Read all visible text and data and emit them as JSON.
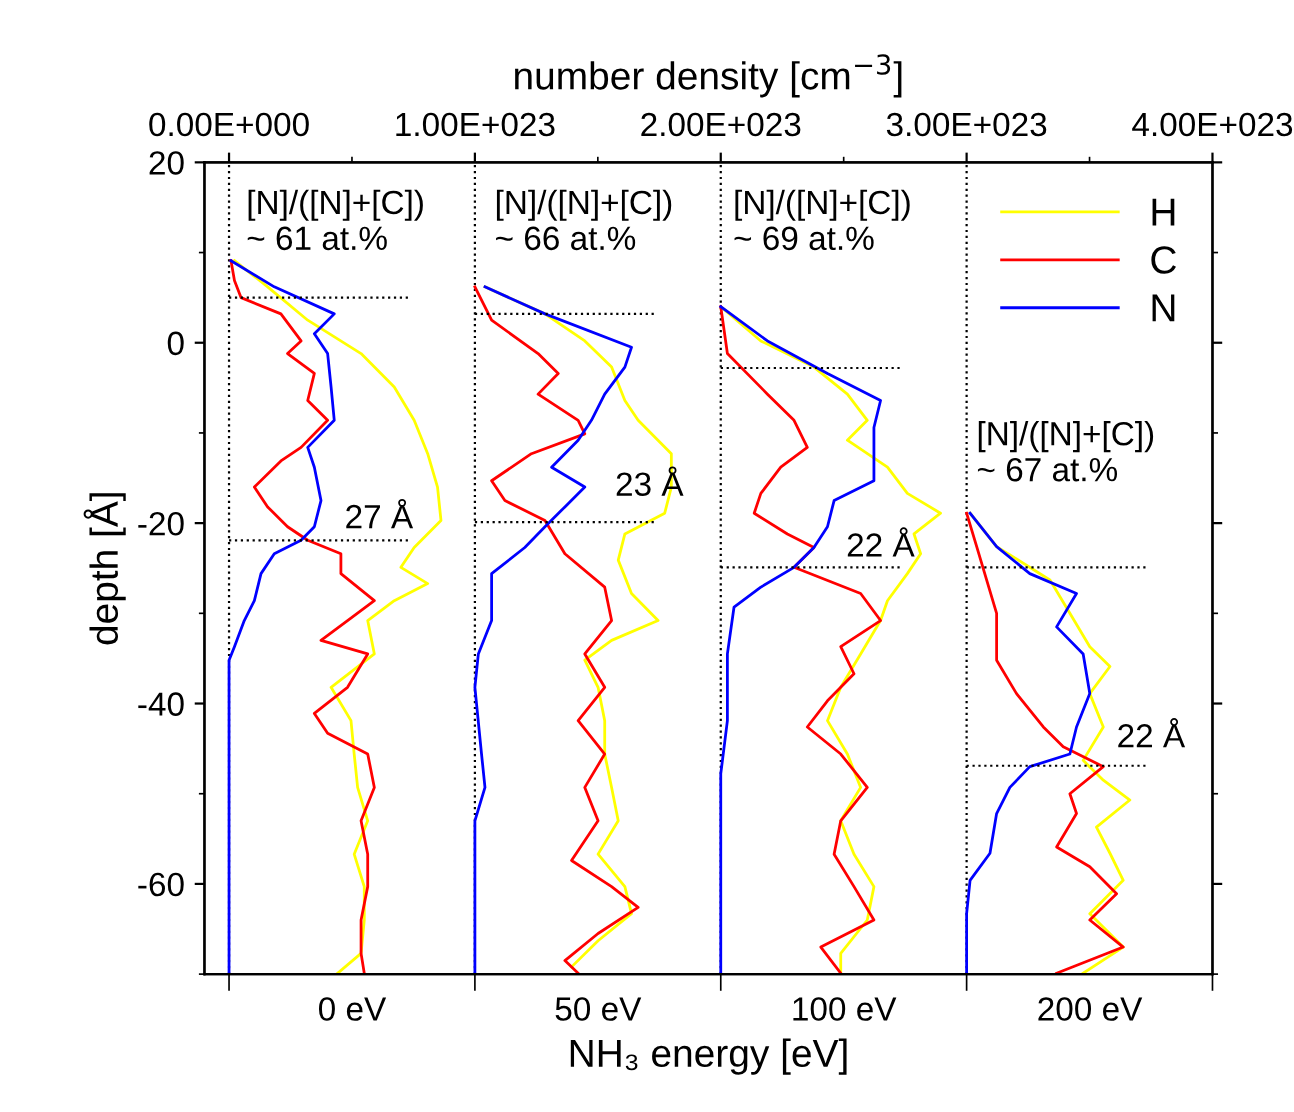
{
  "chart_data": {
    "type": "line",
    "xlabel": "NH₃ energy [eV]",
    "x2label": "number density [cm$^{−3}$]",
    "ylabel": "depth [Å]",
    "categories": [
      "0 eV",
      "50 eV",
      "100 eV",
      "200 eV"
    ],
    "x2lim": [
      -1e+22,
      4e+23
    ],
    "x2ticks": [
      {
        "value": 0,
        "label": "0.00E+000"
      },
      {
        "value": 1e+23,
        "label": "1.00E+023"
      },
      {
        "value": 2e+23,
        "label": "2.00E+023"
      },
      {
        "value": 3e+23,
        "label": "3.00E+023"
      },
      {
        "value": 4e+23,
        "label": "4.00E+023"
      }
    ],
    "ylim": [
      -70,
      20
    ],
    "yticks": [
      -60,
      -40,
      -20,
      0,
      20
    ],
    "legend": "top right",
    "series": [
      {
        "name": "H",
        "color": "#ffff00",
        "axis": "x2",
        "x": [
          2.2e+21,
          1.57e+22,
          3.2e+22,
          5.37e+22,
          6.72e+22,
          7.53e+22,
          8.08e+22,
          8.48e+22,
          8.62e+22,
          7.53e+22,
          6.99e+22,
          8.08e+22,
          6.72e+22,
          5.64e+22,
          5.91e+22,
          4.15e+22,
          4.96e+22,
          5.09e+22,
          5.23e+22,
          5.64e+22,
          5.09e+22,
          5.5e+22,
          5.5e+22,
          5.37e+22,
          4.42e+22
        ],
        "values": [
          9.1,
          6.2,
          2.5,
          -1.2,
          -4.9,
          -8.6,
          -12.3,
          -16.0,
          -19.7,
          -22.7,
          -24.9,
          -26.7,
          -28.6,
          -30.8,
          -34.5,
          -38.2,
          -41.9,
          -45.6,
          -49.3,
          -53.0,
          -56.7,
          -60.3,
          -64.0,
          -67.7,
          -69.9
        ]
      },
      {
        "name": "C",
        "color": "#ff0000",
        "axis": "x2",
        "x": [
          8e+20,
          2.2e+21,
          4.9e+21,
          2.11e+22,
          2.93e+22,
          2.38e+22,
          3.47e+22,
          3.2e+22,
          4.01e+22,
          2.93e+22,
          2.11e+22,
          1.03e+22,
          1.57e+22,
          2.38e+22,
          3.2e+22,
          4.55e+22,
          4.55e+22,
          5.91e+22,
          4.82e+22,
          3.74e+22,
          5.64e+22,
          4.82e+22,
          3.47e+22,
          4.01e+22,
          5.64e+22,
          5.91e+22,
          5.37e+22,
          5.64e+22,
          5.64e+22,
          5.37e+22,
          5.37e+22,
          5.5e+22
        ],
        "values": [
          9.1,
          6.9,
          5.0,
          3.2,
          0.2,
          -1.2,
          -3.4,
          -6.4,
          -8.6,
          -11.6,
          -13.1,
          -16.0,
          -18.2,
          -20.4,
          -21.9,
          -23.4,
          -25.6,
          -28.6,
          -30.8,
          -33.0,
          -34.5,
          -38.2,
          -41.1,
          -43.3,
          -45.6,
          -49.3,
          -53.0,
          -56.7,
          -60.3,
          -64.0,
          -67.7,
          -69.9
        ]
      },
      {
        "name": "N",
        "color": "#0000ff",
        "axis": "x2",
        "x": [
          8e+20,
          1.84e+22,
          4.28e+22,
          3.47e+22,
          4.01e+22,
          4.15e+22,
          4.28e+22,
          3.2e+22,
          3.47e+22,
          3.74e+22,
          3.47e+22,
          2.93e+22,
          1.84e+22,
          1.3e+22,
          1.03e+22,
          6.2e+21,
          2.2e+21,
          0,
          0
        ],
        "values": [
          9.1,
          6.2,
          3.2,
          1.0,
          -1.2,
          -4.9,
          -8.6,
          -11.6,
          -13.8,
          -17.5,
          -20.4,
          -21.9,
          -23.4,
          -25.6,
          -28.6,
          -30.8,
          -33.7,
          -35.2,
          -69.9
        ]
      },
      {
        "color": "#ffff00",
        "axis": "x2",
        "x": [
          1.041e+23,
          1.285e+23,
          1.447e+23,
          1.556e+23,
          1.61e+23,
          1.664e+23,
          1.799e+23,
          1.799e+23,
          1.772e+23,
          1.61e+23,
          1.583e+23,
          1.637e+23,
          1.745e+23,
          1.556e+23,
          1.447e+23,
          1.501e+23,
          1.528e+23,
          1.528e+23,
          1.556e+23,
          1.583e+23,
          1.501e+23,
          1.61e+23,
          1.637e+23,
          1.501e+23,
          1.393e+23
        ],
        "values": [
          6.2,
          3.2,
          0.2,
          -2.7,
          -6.4,
          -8.6,
          -12.3,
          -16.0,
          -18.9,
          -21.2,
          -24.1,
          -27.8,
          -30.8,
          -33.0,
          -35.2,
          -38.2,
          -41.9,
          -45.6,
          -49.3,
          -53.0,
          -56.7,
          -60.3,
          -63.3,
          -66.3,
          -69.2
        ]
      },
      {
        "color": "#ff0000",
        "axis": "x2",
        "x": [
          1e+23,
          1.068e+23,
          1.257e+23,
          1.339e+23,
          1.257e+23,
          1.42e+23,
          1.447e+23,
          1.23e+23,
          1.068e+23,
          1.122e+23,
          1.285e+23,
          1.366e+23,
          1.528e+23,
          1.556e+23,
          1.447e+23,
          1.528e+23,
          1.42e+23,
          1.528e+23,
          1.447e+23,
          1.501e+23,
          1.393e+23,
          1.556e+23,
          1.664e+23,
          1.501e+23,
          1.366e+23,
          1.42e+23
        ],
        "values": [
          6.2,
          2.5,
          -1.2,
          -3.4,
          -5.7,
          -8.6,
          -10.1,
          -12.3,
          -15.3,
          -17.5,
          -19.7,
          -23.4,
          -27.1,
          -30.8,
          -34.5,
          -38.2,
          -41.9,
          -45.6,
          -49.3,
          -53.0,
          -57.4,
          -60.3,
          -62.6,
          -65.5,
          -68.5,
          -69.9
        ]
      },
      {
        "color": "#0000ff",
        "axis": "x2",
        "x": [
          1.041e+23,
          1.285e+23,
          1.637e+23,
          1.61e+23,
          1.528e+23,
          1.474e+23,
          1.42e+23,
          1.312e+23,
          1.447e+23,
          1.366e+23,
          1.285e+23,
          1.203e+23,
          1.068e+23,
          1.068e+23,
          1.014e+23,
          1e+23,
          1.027e+23,
          1.041e+23,
          1e+23,
          1e+23
        ],
        "values": [
          6.2,
          3.2,
          -0.5,
          -2.7,
          -5.7,
          -8.6,
          -10.8,
          -13.8,
          -16.0,
          -18.2,
          -20.4,
          -22.7,
          -25.6,
          -30.8,
          -34.5,
          -38.2,
          -45.6,
          -49.3,
          -53.0,
          -69.9
        ]
      },
      {
        "color": "#ffff00",
        "axis": "x2",
        "x": [
          2e+23,
          2.163e+23,
          2.379e+23,
          2.515e+23,
          2.596e+23,
          2.515e+23,
          2.678e+23,
          2.759e+23,
          2.894e+23,
          2.786e+23,
          2.813e+23,
          2.759e+23,
          2.678e+23,
          2.65e+23,
          2.569e+23,
          2.488e+23,
          2.434e+23,
          2.515e+23,
          2.569e+23,
          2.488e+23,
          2.542e+23,
          2.623e+23,
          2.596e+23,
          2.488e+23,
          2.488e+23
        ],
        "values": [
          4.0,
          0.2,
          -2.7,
          -5.7,
          -8.6,
          -10.8,
          -13.8,
          -16.7,
          -18.9,
          -21.2,
          -23.4,
          -25.6,
          -28.6,
          -30.8,
          -34.5,
          -38.2,
          -41.9,
          -45.6,
          -49.3,
          -53.0,
          -56.7,
          -60.3,
          -64.0,
          -67.7,
          -69.9
        ]
      },
      {
        "color": "#ff0000",
        "axis": "x2",
        "x": [
          2e+23,
          2.027e+23,
          2.19e+23,
          2.298e+23,
          2.352e+23,
          2.244e+23,
          2.163e+23,
          2.136e+23,
          2.271e+23,
          2.379e+23,
          2.298e+23,
          2.569e+23,
          2.65e+23,
          2.488e+23,
          2.542e+23,
          2.434e+23,
          2.352e+23,
          2.488e+23,
          2.596e+23,
          2.488e+23,
          2.461e+23,
          2.542e+23,
          2.623e+23,
          2.407e+23,
          2.488e+23
        ],
        "values": [
          4.0,
          -1.2,
          -5.7,
          -8.6,
          -11.6,
          -13.8,
          -16.7,
          -18.9,
          -21.2,
          -22.7,
          -24.9,
          -27.8,
          -30.8,
          -33.7,
          -36.7,
          -39.7,
          -42.6,
          -45.6,
          -49.3,
          -53.0,
          -56.7,
          -60.3,
          -64.0,
          -67.0,
          -69.9
        ]
      },
      {
        "color": "#0000ff",
        "axis": "x2",
        "x": [
          2e+23,
          2.19e+23,
          2.434e+23,
          2.65e+23,
          2.623e+23,
          2.623e+23,
          2.623e+23,
          2.461e+23,
          2.434e+23,
          2.379e+23,
          2.298e+23,
          2.163e+23,
          2.054e+23,
          2.027e+23,
          2.027e+23,
          2e+23,
          2e+23
        ],
        "values": [
          4.0,
          0.2,
          -3.4,
          -6.4,
          -9.4,
          -12.3,
          -15.3,
          -17.5,
          -20.4,
          -22.7,
          -24.9,
          -27.1,
          -29.3,
          -34.5,
          -41.9,
          -47.8,
          -69.9
        ]
      },
      {
        "color": "#ffff00",
        "axis": "x2",
        "x": [
          3.014e+23,
          3.122e+23,
          3.339e+23,
          3.42e+23,
          3.501e+23,
          3.583e+23,
          3.501e+23,
          3.556e+23,
          3.474e+23,
          3.556e+23,
          3.664e+23,
          3.528e+23,
          3.583e+23,
          3.637e+23,
          3.501e+23,
          3.637e+23,
          3.474e+23
        ],
        "values": [
          -18.9,
          -22.6,
          -26.3,
          -30.0,
          -33.7,
          -35.9,
          -38.9,
          -42.6,
          -46.3,
          -48.5,
          -50.7,
          -53.7,
          -56.6,
          -59.6,
          -63.3,
          -67.0,
          -69.9
        ]
      },
      {
        "color": "#ff0000",
        "axis": "x2",
        "x": [
          3e+23,
          3.041e+23,
          3.122e+23,
          3.122e+23,
          3.203e+23,
          3.312e+23,
          3.393e+23,
          3.556e+23,
          3.42e+23,
          3.447e+23,
          3.366e+23,
          3.501e+23,
          3.61e+23,
          3.501e+23,
          3.637e+23,
          3.366e+23
        ],
        "values": [
          -18.9,
          -22.6,
          -30.0,
          -35.2,
          -38.9,
          -42.6,
          -44.8,
          -47.0,
          -50.0,
          -52.2,
          -55.9,
          -58.1,
          -61.1,
          -64.0,
          -67.0,
          -69.9
        ]
      },
      {
        "color": "#0000ff",
        "axis": "x2",
        "x": [
          3.014e+23,
          3.122e+23,
          3.257e+23,
          3.447e+23,
          3.366e+23,
          3.474e+23,
          3.501e+23,
          3.447e+23,
          3.42e+23,
          3.257e+23,
          3.176e+23,
          3.122e+23,
          3.095e+23,
          3.014e+23,
          3e+23,
          3e+23
        ],
        "values": [
          -18.9,
          -22.6,
          -25.6,
          -27.8,
          -31.5,
          -34.5,
          -38.9,
          -42.6,
          -45.6,
          -47.0,
          -49.3,
          -52.2,
          -56.6,
          -59.6,
          -63.3,
          -69.9
        ]
      },
      {
        "color": "#000000",
        "axis": "x2",
        "line_style": "dotted",
        "x": [
          0,
          7.4e+22
        ],
        "values": [
          5.0,
          5.0
        ]
      },
      {
        "color": "#000000",
        "axis": "x2",
        "line_style": "dotted",
        "x": [
          0,
          7.4e+22
        ],
        "values": [
          -21.9,
          -21.9
        ]
      },
      {
        "color": "#000000",
        "axis": "x2",
        "line_style": "dotted",
        "x": [
          1e+23,
          1.73e+23
        ],
        "values": [
          3.2,
          3.2
        ]
      },
      {
        "color": "#000000",
        "axis": "x2",
        "line_style": "dotted",
        "x": [
          1e+23,
          1.73e+23
        ],
        "values": [
          -19.9,
          -19.9
        ]
      },
      {
        "color": "#000000",
        "axis": "x2",
        "line_style": "dotted",
        "x": [
          2e+23,
          2.73e+23
        ],
        "values": [
          -2.8,
          -2.8
        ]
      },
      {
        "color": "#000000",
        "axis": "x2",
        "line_style": "dotted",
        "x": [
          2e+23,
          2.73e+23
        ],
        "values": [
          -24.9,
          -24.9
        ]
      },
      {
        "color": "#000000",
        "axis": "x2",
        "line_style": "dotted",
        "x": [
          3e+23,
          3.73e+23
        ],
        "values": [
          -24.9,
          -24.9
        ]
      },
      {
        "color": "#000000",
        "axis": "x2",
        "line_style": "dotted",
        "x": [
          3e+23,
          3.73e+23
        ],
        "values": [
          -46.9,
          -46.9
        ]
      }
    ],
    "ref_lines": [
      {
        "axis": "x2",
        "value": 0,
        "color": "#000000",
        "line_style": "dotted"
      },
      {
        "axis": "x2",
        "value": 1e+23,
        "color": "#000000",
        "line_style": "dotted"
      },
      {
        "axis": "x2",
        "value": 2e+23,
        "color": "#000000",
        "line_style": "dotted"
      },
      {
        "axis": "x2",
        "value": 3e+23,
        "color": "#000000",
        "line_style": "dotted"
      }
    ],
    "annotations": [
      "[N]/([N]+[C])\n~ 61 at.%",
      "[N]/([N]+[C])\n~ 66 at.%",
      "[N]/([N]+[C])\n~ 69 at.%",
      "[N]/([N]+[C])\n~ 67 at.%",
      "27 Å",
      "23 Å",
      "22 Å",
      "22 Å"
    ]
  }
}
